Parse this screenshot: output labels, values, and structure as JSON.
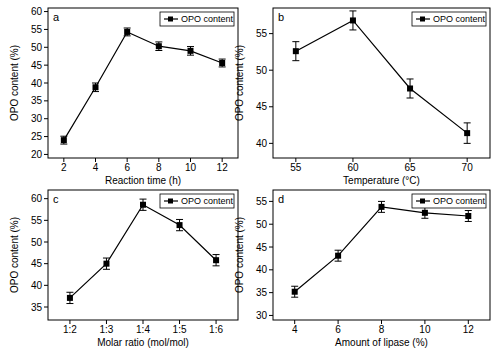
{
  "chart_data": [
    {
      "type": "line",
      "title": "a",
      "xlabel": "Reaction time (h)",
      "ylabel": "OPO content (%)",
      "x": [
        2,
        4,
        6,
        8,
        10,
        12
      ],
      "xlim": [
        1,
        13
      ],
      "xticks": [
        2,
        4,
        6,
        8,
        10,
        12
      ],
      "ylim": [
        19,
        61
      ],
      "yticks": [
        20,
        25,
        30,
        35,
        40,
        45,
        50,
        55,
        60
      ],
      "legend": "upper right",
      "series": [
        {
          "name": "OPO content",
          "color": "#000000",
          "marker": "square",
          "values": [
            24.0,
            38.8,
            54.3,
            50.3,
            49.0,
            45.6
          ],
          "errors": [
            1.1,
            1.2,
            1.1,
            1.2,
            1.2,
            1.1
          ]
        }
      ]
    },
    {
      "type": "line",
      "title": "b",
      "xlabel": "Temperature (°C)",
      "ylabel": "OPO content (%)",
      "x": [
        55,
        60,
        65,
        70
      ],
      "xlim": [
        53,
        72
      ],
      "xticks": [
        55,
        60,
        65,
        70
      ],
      "ylim": [
        38,
        58.5
      ],
      "yticks": [
        40,
        45,
        50,
        55
      ],
      "legend": "upper right",
      "series": [
        {
          "name": "OPO content",
          "color": "#000000",
          "marker": "square",
          "values": [
            52.6,
            56.8,
            47.5,
            41.4
          ],
          "errors": [
            1.3,
            1.3,
            1.3,
            1.4
          ]
        }
      ]
    },
    {
      "type": "line",
      "title": "c",
      "xlabel": "Molar ratio (mol/mol)",
      "ylabel": "OPO content (%)",
      "categories": [
        "1:2",
        "1:3",
        "1:4",
        "1:5",
        "1:6"
      ],
      "ylim": [
        32,
        62
      ],
      "yticks": [
        35,
        40,
        45,
        50,
        55,
        60
      ],
      "legend": "upper right",
      "series": [
        {
          "name": "OPO content",
          "color": "#000000",
          "marker": "square",
          "values": [
            37.1,
            45.0,
            58.6,
            53.9,
            45.8
          ],
          "errors": [
            1.3,
            1.3,
            1.3,
            1.3,
            1.3
          ]
        }
      ]
    },
    {
      "type": "line",
      "title": "d",
      "xlabel": "Amount of lipase (%)",
      "ylabel": "OPO content (%)",
      "x": [
        4,
        6,
        8,
        10,
        12
      ],
      "xlim": [
        3,
        13
      ],
      "xticks": [
        4,
        6,
        8,
        10,
        12
      ],
      "ylim": [
        29,
        57.5
      ],
      "yticks": [
        30,
        35,
        40,
        45,
        50,
        55
      ],
      "legend": "upper right",
      "series": [
        {
          "name": "OPO content",
          "color": "#000000",
          "marker": "square",
          "values": [
            35.2,
            43.1,
            53.8,
            52.5,
            51.8
          ],
          "errors": [
            1.2,
            1.2,
            1.2,
            1.2,
            1.2
          ]
        }
      ]
    }
  ]
}
